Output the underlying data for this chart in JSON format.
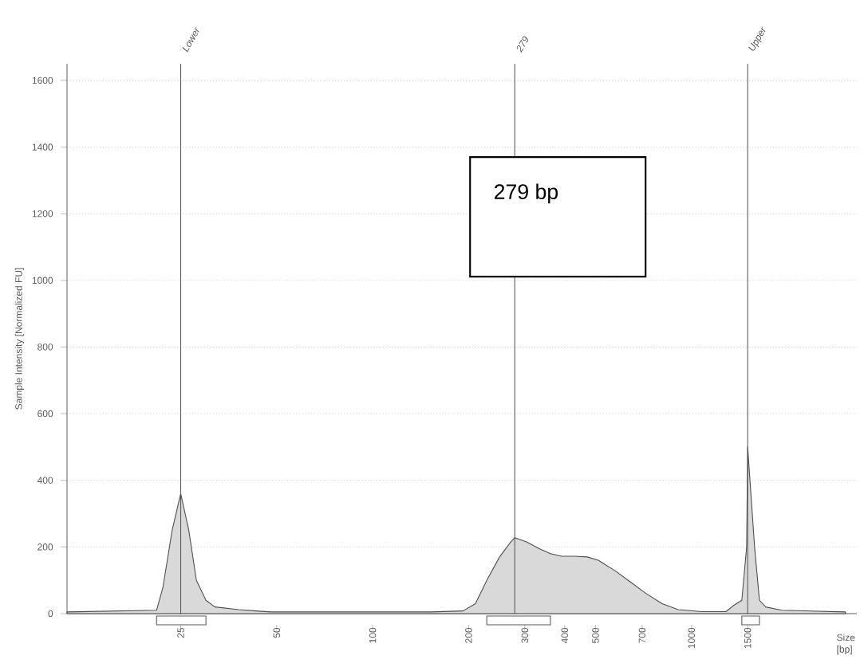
{
  "chart_data": {
    "type": "area",
    "xlabel": "Size [bp]",
    "ylabel": "Sample Intensity [Normalized FU]",
    "log": "x",
    "xlim": [
      11,
      3300
    ],
    "ylim": [
      0,
      1650
    ],
    "xticks": [
      25,
      50,
      100,
      200,
      300,
      400,
      500,
      700,
      1000,
      1500
    ],
    "yticks": [
      0,
      200,
      400,
      600,
      800,
      1000,
      1200,
      1400,
      1600
    ],
    "grid": "y",
    "series": [
      {
        "color": "#d9d9d9",
        "x": [
          11,
          21,
          22,
          23.5,
          25,
          26.5,
          28,
          30,
          32,
          38,
          43,
          48,
          152,
          192,
          210,
          228,
          250,
          271,
          279,
          304,
          333,
          361,
          392,
          430,
          471,
          510,
          573,
          643,
          721,
          809,
          908,
          1079,
          1282,
          1358,
          1438,
          1489,
          1500,
          1577,
          1633,
          1710,
          1918,
          3040
        ],
        "values": [
          5,
          10,
          80,
          250,
          360,
          250,
          100,
          40,
          20,
          12,
          8,
          5,
          5,
          8,
          30,
          100,
          170,
          215,
          228,
          215,
          195,
          180,
          172,
          172,
          170,
          160,
          130,
          95,
          60,
          30,
          12,
          6,
          6,
          25,
          40,
          200,
          500,
          200,
          40,
          20,
          10,
          5
        ]
      }
    ],
    "ref_lines": [
      {
        "axis": "x",
        "value": 25,
        "label": "Lower"
      },
      {
        "axis": "x",
        "value": 279,
        "label": "279"
      },
      {
        "axis": "x",
        "value": 1500,
        "label": "Upper"
      }
    ],
    "annotations": [
      "279 bp"
    ]
  }
}
